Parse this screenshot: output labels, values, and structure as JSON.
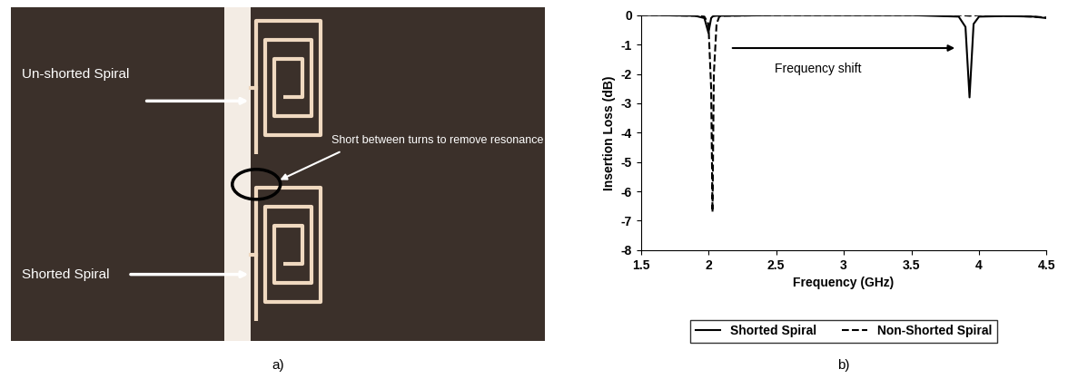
{
  "photo": {
    "panel_label": "a)",
    "labels": {
      "unshorted": "Un-shorted Spiral",
      "short": "Short between turns to remove resonance",
      "shorted": "Shorted Spiral"
    }
  },
  "chart_data": {
    "type": "line",
    "panel_label": "b)",
    "x_label": "Frequency (GHz)",
    "y_label": "Insertion Loss (dB)",
    "annotation": "Frequency shift",
    "x": [
      1.5,
      1.6,
      1.9,
      1.97,
      2.0,
      2.02,
      2.03,
      2.04,
      2.06,
      2.08,
      2.1,
      2.5,
      3.0,
      3.5,
      3.85,
      3.9,
      3.93,
      3.96,
      4.0,
      4.2,
      4.4,
      4.5
    ],
    "series": [
      {
        "name": "Shorted Spiral",
        "color": "#000000",
        "line_style": "solid",
        "values": [
          0,
          0,
          -0.02,
          -0.1,
          -0.6,
          -0.1,
          -0.05,
          -0.03,
          -0.02,
          -0.02,
          -0.02,
          0,
          0,
          0,
          -0.05,
          -0.4,
          -2.8,
          -0.3,
          -0.05,
          -0.03,
          -0.05,
          -0.1
        ]
      },
      {
        "name": "Non-Shorted Spiral",
        "color": "#000000",
        "line_style": "dashed",
        "values": [
          0,
          0,
          -0.02,
          -0.05,
          -0.3,
          -2.5,
          -6.7,
          -2.0,
          -0.3,
          -0.05,
          -0.02,
          0,
          0,
          0,
          0,
          -0.01,
          -0.02,
          -0.01,
          0,
          -0.02,
          -0.05,
          -0.08
        ]
      }
    ],
    "xlim": [
      1.5,
      4.5
    ],
    "xticks": [
      1.5,
      2,
      2.5,
      3,
      3.5,
      4,
      4.5
    ],
    "ylim": [
      -8,
      0
    ],
    "yticks": [
      -8,
      -7,
      -6,
      -5,
      -4,
      -3,
      -2,
      -1,
      0
    ],
    "grid": false,
    "legend": "lower center"
  }
}
